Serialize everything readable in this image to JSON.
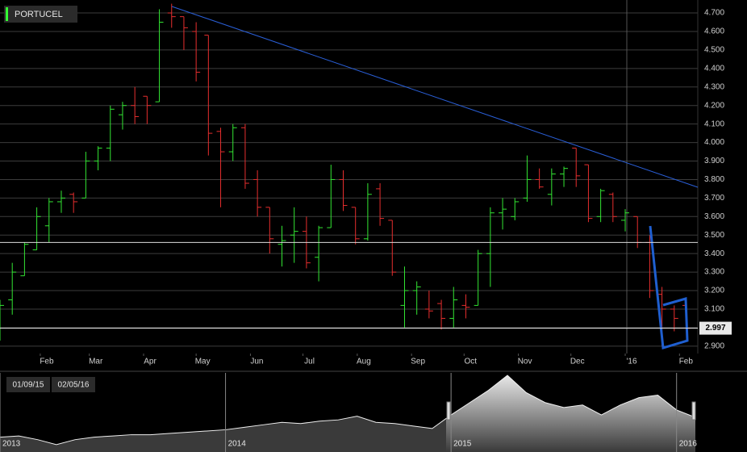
{
  "chart_data": {
    "type": "ohlc",
    "title": "PORTUCEL",
    "x": [
      "2015-01-09",
      "2015-01-16",
      "2015-01-23",
      "2015-01-30",
      "2015-02-06",
      "2015-02-13",
      "2015-02-20",
      "2015-02-27",
      "2015-03-06",
      "2015-03-13",
      "2015-03-20",
      "2015-03-27",
      "2015-04-03",
      "2015-04-10",
      "2015-04-17",
      "2015-04-24",
      "2015-05-01",
      "2015-05-08",
      "2015-05-15",
      "2015-05-22",
      "2015-05-29",
      "2015-06-05",
      "2015-06-12",
      "2015-06-19",
      "2015-06-26",
      "2015-07-03",
      "2015-07-10",
      "2015-07-17",
      "2015-07-24",
      "2015-07-31",
      "2015-08-07",
      "2015-08-14",
      "2015-08-21",
      "2015-08-28",
      "2015-09-04",
      "2015-09-11",
      "2015-09-18",
      "2015-09-25",
      "2015-10-02",
      "2015-10-09",
      "2015-10-16",
      "2015-10-23",
      "2015-10-30",
      "2015-11-06",
      "2015-11-13",
      "2015-11-20",
      "2015-11-27",
      "2015-12-04",
      "2015-12-11",
      "2015-12-18",
      "2015-12-25",
      "2016-01-01",
      "2016-01-08",
      "2016-01-15",
      "2016-01-22",
      "2016-01-29",
      "2016-02-05"
    ],
    "open": [
      3.05,
      3.15,
      3.28,
      3.42,
      3.55,
      3.68,
      3.72,
      3.7,
      3.9,
      3.97,
      4.15,
      4.2,
      4.25,
      4.22,
      4.7,
      4.68,
      4.6,
      4.58,
      4.06,
      3.95,
      4.08,
      3.8,
      3.65,
      3.45,
      3.5,
      3.52,
      3.38,
      3.54,
      3.8,
      3.65,
      3.48,
      3.75,
      3.58,
      3.12,
      3.2,
      3.1,
      3.13,
      3.05,
      3.12,
      3.12,
      3.4,
      3.62,
      3.6,
      3.7,
      3.8,
      3.72,
      3.83,
      3.97,
      3.88,
      3.6,
      3.72,
      3.58,
      3.6,
      3.46,
      3.18,
      3.1,
      3.12
    ],
    "high": [
      3.15,
      3.35,
      3.46,
      3.65,
      3.7,
      3.74,
      3.73,
      3.95,
      3.98,
      4.2,
      4.22,
      4.3,
      4.25,
      4.72,
      4.75,
      4.68,
      4.65,
      4.58,
      4.08,
      4.1,
      4.1,
      3.85,
      3.65,
      3.55,
      3.65,
      3.6,
      3.55,
      3.88,
      3.85,
      3.65,
      3.78,
      3.78,
      3.58,
      3.33,
      3.25,
      3.2,
      3.15,
      3.22,
      3.18,
      3.42,
      3.65,
      3.7,
      3.7,
      3.93,
      3.86,
      3.86,
      3.87,
      3.97,
      3.88,
      3.75,
      3.73,
      3.64,
      3.6,
      3.5,
      3.22,
      3.12,
      3.13
    ],
    "low": [
      2.93,
      3.07,
      3.28,
      3.42,
      3.46,
      3.62,
      3.62,
      3.7,
      3.85,
      3.9,
      4.07,
      4.1,
      4.1,
      4.22,
      4.62,
      4.5,
      4.33,
      3.93,
      3.65,
      3.9,
      3.75,
      3.6,
      3.4,
      3.33,
      3.35,
      3.32,
      3.25,
      3.54,
      3.63,
      3.45,
      3.47,
      3.55,
      3.28,
      3.0,
      3.07,
      3.05,
      2.99,
      3.0,
      3.05,
      3.12,
      3.22,
      3.53,
      3.58,
      3.68,
      3.75,
      3.66,
      3.76,
      3.76,
      3.57,
      3.57,
      3.57,
      3.52,
      3.43,
      3.16,
      2.9,
      2.98,
      2.93
    ],
    "close": [
      3.12,
      3.3,
      3.45,
      3.6,
      3.68,
      3.7,
      3.68,
      3.9,
      3.97,
      4.18,
      4.2,
      4.14,
      4.2,
      4.65,
      4.68,
      4.62,
      4.38,
      4.05,
      3.95,
      4.08,
      3.78,
      3.65,
      3.48,
      3.47,
      3.52,
      3.35,
      3.54,
      3.8,
      3.66,
      3.48,
      3.72,
      3.59,
      3.3,
      3.2,
      3.22,
      3.09,
      3.05,
      3.15,
      3.11,
      3.4,
      3.62,
      3.64,
      3.68,
      3.8,
      3.76,
      3.83,
      3.86,
      3.82,
      3.59,
      3.74,
      3.6,
      3.62,
      3.46,
      3.2,
      3.1,
      3.05,
      2.997
    ],
    "up_color": "#33e633",
    "down_color": "#e62e2e",
    "xlim": [
      "2015-01-09",
      "2016-02-05"
    ],
    "xticks": [
      {
        "value": "2015-02-01",
        "label": "Feb"
      },
      {
        "value": "2015-03-01",
        "label": "Mar"
      },
      {
        "value": "2015-04-01",
        "label": "Apr"
      },
      {
        "value": "2015-05-01",
        "label": "May"
      },
      {
        "value": "2015-06-01",
        "label": "Jun"
      },
      {
        "value": "2015-07-01",
        "label": "Jul"
      },
      {
        "value": "2015-08-01",
        "label": "Aug"
      },
      {
        "value": "2015-09-01",
        "label": "Sep"
      },
      {
        "value": "2015-10-01",
        "label": "Oct"
      },
      {
        "value": "2015-11-01",
        "label": "Nov"
      },
      {
        "value": "2015-12-01",
        "label": "Dec"
      },
      {
        "value": "2016-01-01",
        "label": "'16"
      },
      {
        "value": "2016-02-01",
        "label": "Feb"
      }
    ],
    "ylim": [
      2.86,
      4.77
    ],
    "yticks": [
      {
        "value": 2.9,
        "label": "2.900"
      },
      {
        "value": 3.0,
        "label": "3.000"
      },
      {
        "value": 3.1,
        "label": "3.100"
      },
      {
        "value": 3.2,
        "label": "3.200"
      },
      {
        "value": 3.3,
        "label": "3.300"
      },
      {
        "value": 3.4,
        "label": "3.400"
      },
      {
        "value": 3.5,
        "label": "3.500"
      },
      {
        "value": 3.6,
        "label": "3.600"
      },
      {
        "value": 3.7,
        "label": "3.700"
      },
      {
        "value": 3.8,
        "label": "3.800"
      },
      {
        "value": 3.9,
        "label": "3.900"
      },
      {
        "value": 4.0,
        "label": "4.000"
      },
      {
        "value": 4.1,
        "label": "4.100"
      },
      {
        "value": 4.2,
        "label": "4.200"
      },
      {
        "value": 4.3,
        "label": "4.300"
      },
      {
        "value": 4.4,
        "label": "4.400"
      },
      {
        "value": 4.5,
        "label": "4.500"
      },
      {
        "value": 4.6,
        "label": "4.600"
      },
      {
        "value": 4.7,
        "label": "4.700"
      }
    ],
    "grid": true,
    "hline": 3.46,
    "navigator": {
      "values": [
        2.2,
        2.25,
        2.1,
        1.9,
        2.1,
        2.2,
        2.25,
        2.3,
        2.3,
        2.35,
        2.4,
        2.45,
        2.5,
        2.6,
        2.7,
        2.8,
        2.75,
        2.85,
        2.9,
        3.05,
        2.8,
        2.75,
        2.65,
        2.55,
        3.1,
        3.6,
        4.1,
        4.7,
        4.0,
        3.6,
        3.4,
        3.5,
        3.1,
        3.5,
        3.8,
        3.9,
        3.3,
        3.0
      ],
      "ylim": [
        1.6,
        4.8
      ],
      "years": [
        "2013",
        "2014",
        "2015",
        "2016"
      ],
      "range_start": "01/09/15",
      "range_end": "02/05/16"
    }
  }
}
